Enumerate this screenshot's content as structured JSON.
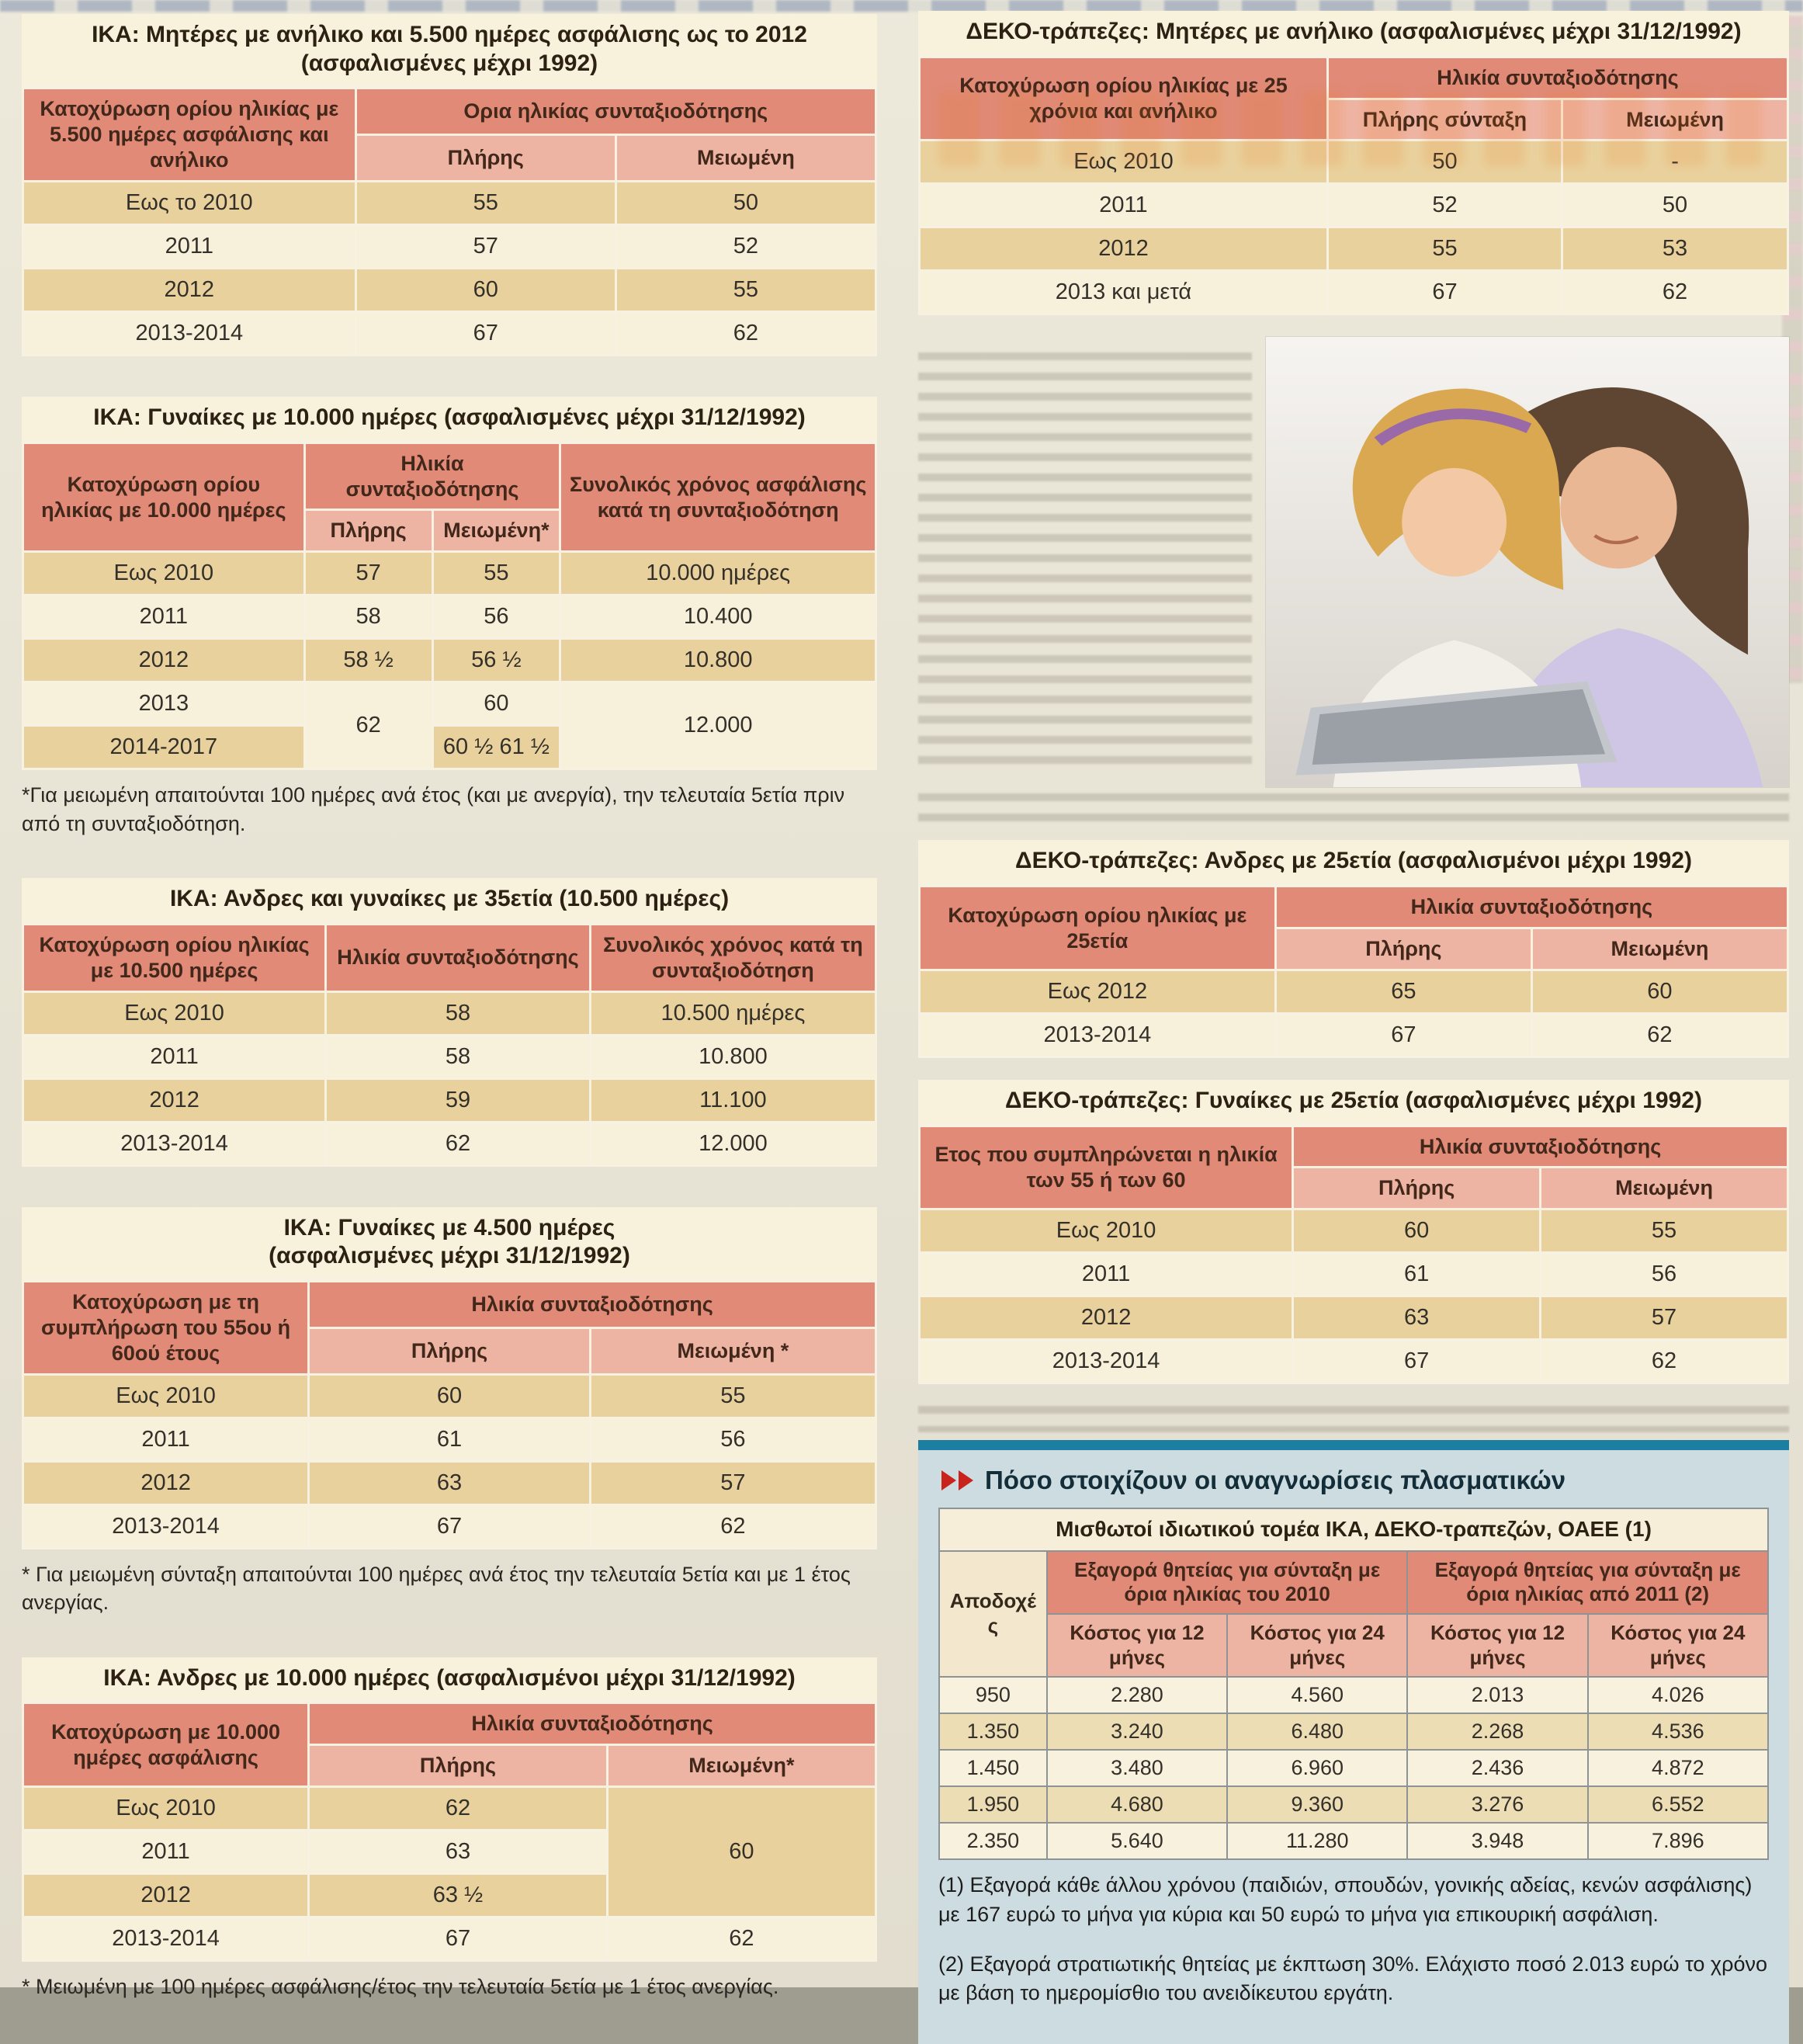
{
  "page": {
    "colors": {
      "background": "#e7e3d4",
      "header_main": "#e08a77",
      "header_sub": "#eeb4a3",
      "row_dark": "#e9d19d",
      "row_light": "#f7f0da",
      "title_bg": "#f8f1dc",
      "panel_bg": "#cddce0",
      "panel_bar_teal": "#1c7fa1",
      "chevron_red": "#c9241c"
    }
  },
  "tables": [
    {
      "id": "ika-mothers",
      "title_lines": [
        "ΙΚΑ: Μητέρες με ανήλικο και 5.500 ημέρες ασφάλισης ως το 2012",
        "(ασφαλισμένες μέχρι 1992)"
      ],
      "col_widths": [
        "39%",
        "30.5%",
        "30.5%"
      ],
      "header": [
        [
          {
            "text": "Κατοχύρωση ορίου ηλικίας με 5.500 ημέρες ασφάλισης και ανήλικο",
            "rowspan": 2,
            "type": "main"
          },
          {
            "text": "Ορια ηλικίας συνταξιοδότησης",
            "colspan": 2,
            "type": "main"
          }
        ],
        [
          {
            "text": "Πλήρης",
            "type": "sub"
          },
          {
            "text": "Μειωμένη",
            "type": "sub"
          }
        ]
      ],
      "rows": [
        [
          "Εως το 2010",
          "55",
          "50"
        ],
        [
          "2011",
          "57",
          "52"
        ],
        [
          "2012",
          "60",
          "55"
        ],
        [
          "2013-2014",
          "67",
          "62"
        ]
      ]
    },
    {
      "id": "ika-women-10000",
      "title_lines": [
        "ΙΚΑ: Γυναίκες με 10.000 ημέρες (ασφαλισμένες μέχρι 31/12/1992)"
      ],
      "col_widths": [
        "33%",
        "15%",
        "15%",
        "37%"
      ],
      "header": [
        [
          {
            "text": "Κατοχύρωση ορίου ηλικίας με 10.000 ημέρες",
            "rowspan": 2,
            "type": "main"
          },
          {
            "text": "Ηλικία συνταξιοδότησης",
            "colspan": 2,
            "type": "main"
          },
          {
            "text": "Συνολικός χρόνος ασφάλισης κατά τη συνταξιοδότηση",
            "rowspan": 2,
            "type": "main"
          }
        ],
        [
          {
            "text": "Πλήρης",
            "type": "sub"
          },
          {
            "text": "Μειωμένη*",
            "type": "sub"
          }
        ]
      ],
      "rows": [
        [
          "Εως 2010",
          "57",
          "55",
          "10.000 ημέρες"
        ],
        [
          "2011",
          "58",
          "56",
          "10.400"
        ],
        [
          "2012",
          "58 ½",
          "56 ½",
          "10.800"
        ],
        [
          "2013",
          {
            "text": "62",
            "rowspan": 2
          },
          "60",
          {
            "text": "12.000",
            "rowspan": 2
          }
        ],
        [
          "2014-2017",
          "60 ½ 61 ½"
        ]
      ],
      "footnote": "*Για μειωμένη απαιτούνται 100 ημέρες ανά έτος (και με ανεργία), την τελευταία 5ετία πριν από τη συνταξιοδότηση."
    },
    {
      "id": "ika-35",
      "title_lines": [
        "ΙΚΑ: Ανδρες και γυναίκες με 35ετία (10.500 ημέρες)"
      ],
      "col_widths": [
        "35.5%",
        "31%",
        "33.5%"
      ],
      "header": [
        [
          {
            "text": "Κατοχύρωση ορίου ηλικίας με 10.500 ημέρες",
            "type": "main"
          },
          {
            "text": "Ηλικία συνταξιοδότησης",
            "type": "main"
          },
          {
            "text": "Συνολικός χρόνος κατά τη συνταξιοδότηση",
            "type": "main"
          }
        ]
      ],
      "rows": [
        [
          "Εως 2010",
          "58",
          "10.500 ημέρες"
        ],
        [
          "2011",
          "58",
          "10.800"
        ],
        [
          "2012",
          "59",
          "11.100"
        ],
        [
          "2013-2014",
          "62",
          "12.000"
        ]
      ]
    },
    {
      "id": "ika-women-4500",
      "title_lines": [
        "ΙΚΑ: Γυναίκες με 4.500 ημέρες",
        "(ασφαλισμένες μέχρι 31/12/1992)"
      ],
      "col_widths": [
        "33.5%",
        "33%",
        "33.5%"
      ],
      "header": [
        [
          {
            "text": "Κατοχύρωση με τη συμπλήρωση του 55ου ή 60ού έτους",
            "rowspan": 2,
            "type": "main"
          },
          {
            "text": "Ηλικία συνταξιοδότησης",
            "colspan": 2,
            "type": "main"
          }
        ],
        [
          {
            "text": "Πλήρης",
            "type": "sub"
          },
          {
            "text": "Μειωμένη *",
            "type": "sub"
          }
        ]
      ],
      "rows": [
        [
          "Εως 2010",
          "60",
          "55"
        ],
        [
          "2011",
          "61",
          "56"
        ],
        [
          "2012",
          "63",
          "57"
        ],
        [
          "2013-2014",
          "67",
          "62"
        ]
      ],
      "footnote": "* Για μειωμένη σύνταξη απαιτούνται 100 ημέρες ανά έτος την τελευταία 5ετία και με 1 έτος ανεργίας."
    },
    {
      "id": "ika-men-10000",
      "title_lines": [
        "ΙΚΑ: Ανδρες με 10.000 ημέρες (ασφαλισμένοι μέχρι 31/12/1992)"
      ],
      "col_widths": [
        "33.5%",
        "35%",
        "31.5%"
      ],
      "header": [
        [
          {
            "text": "Κατοχύρωση με 10.000 ημέρες ασφάλισης",
            "rowspan": 2,
            "type": "main"
          },
          {
            "text": "Ηλικία συνταξιοδότησης",
            "colspan": 2,
            "type": "main"
          }
        ],
        [
          {
            "text": "Πλήρης",
            "type": "sub"
          },
          {
            "text": "Μειωμένη*",
            "type": "sub"
          }
        ]
      ],
      "rows": [
        [
          "Εως 2010",
          "62",
          {
            "text": "60",
            "rowspan": 3
          }
        ],
        [
          "2011",
          "63"
        ],
        [
          "2012",
          "63 ½"
        ],
        [
          "2013-2014",
          "67",
          "62"
        ]
      ],
      "footnote": "* Μειωμένη με 100 ημέρες ασφάλισης/έτος την τελευταία 5ετία με 1 έτος ανεργίας."
    },
    {
      "id": "deko-mothers",
      "title_lines": [
        "ΔΕΚΟ-τράπεζες: Μητέρες με ανήλικο (ασφαλισμένες μέχρι 31/12/1992)"
      ],
      "col_widths": [
        "47%",
        "27%",
        "26%"
      ],
      "header": [
        [
          {
            "text": "Κατοχύρωση ορίου ηλικίας με 25 χρόνια και ανήλικο",
            "rowspan": 2,
            "type": "main"
          },
          {
            "text": "Ηλικία συνταξιοδότησης",
            "colspan": 2,
            "type": "main"
          }
        ],
        [
          {
            "text": "Πλήρης σύνταξη",
            "type": "sub"
          },
          {
            "text": "Μειωμένη",
            "type": "sub"
          }
        ]
      ],
      "rows": [
        [
          "Εως 2010",
          "50",
          "-"
        ],
        [
          "2011",
          "52",
          "50"
        ],
        [
          "2012",
          "55",
          "53"
        ],
        [
          "2013 και μετά",
          "67",
          "62"
        ]
      ]
    },
    {
      "id": "deko-men",
      "title_lines": [
        "ΔΕΚΟ-τράπεζες: Ανδρες με 25ετία (ασφαλισμένοι μέχρι 1992)"
      ],
      "col_widths": [
        "41%",
        "29.5%",
        "29.5%"
      ],
      "header": [
        [
          {
            "text": "Κατοχύρωση ορίου ηλικίας με 25ετία",
            "rowspan": 2,
            "type": "main"
          },
          {
            "text": "Ηλικία συνταξιοδότησης",
            "colspan": 2,
            "type": "main"
          }
        ],
        [
          {
            "text": "Πλήρης",
            "type": "sub"
          },
          {
            "text": "Μειωμένη",
            "type": "sub"
          }
        ]
      ],
      "rows": [
        [
          "Εως 2012",
          "65",
          "60"
        ],
        [
          "2013-2014",
          "67",
          "62"
        ]
      ]
    },
    {
      "id": "deko-women",
      "title_lines": [
        "ΔΕΚΟ-τράπεζες: Γυναίκες με 25ετία (ασφαλισμένες μέχρι 1992)"
      ],
      "col_widths": [
        "43%",
        "28.5%",
        "28.5%"
      ],
      "header": [
        [
          {
            "text": "Ετος που συμπληρώνεται η ηλικία των 55 ή των 60",
            "rowspan": 2,
            "type": "main"
          },
          {
            "text": "Ηλικία συνταξιοδότησης",
            "colspan": 2,
            "type": "main"
          }
        ],
        [
          {
            "text": "Πλήρης",
            "type": "sub"
          },
          {
            "text": "Μειωμένη",
            "type": "sub"
          }
        ]
      ],
      "rows": [
        [
          "Εως 2010",
          "60",
          "55"
        ],
        [
          "2011",
          "61",
          "56"
        ],
        [
          "2012",
          "63",
          "57"
        ],
        [
          "2013-2014",
          "67",
          "62"
        ]
      ]
    }
  ],
  "cost_section": {
    "heading": "Πόσο στοιχίζουν οι αναγνωρίσεις πλασματικών",
    "notes": [
      "(1) Εξαγορά κάθε άλλου χρόνου (παιδιών, σπουδών, γονικής αδείας, κενών ασφάλισης) με 167 ευρώ το μήνα για κύρια και 50 ευρώ το μήνα για επικουρική ασφάλιση.",
      "(2) Εξαγορά στρατιωτικής θητείας με έκπτωση 30%. Ελάχιστο ποσό 2.013 ευρώ το χρόνο με βάση το ημερομίσθιο του ανειδίκευτου εργάτη."
    ],
    "table": {
      "id": "cost",
      "title_lines": [
        "Μισθωτοί ιδιωτικού τομέα ΙΚΑ, ΔΕΚΟ-τραπεζών, ΟΑΕΕ (1)"
      ],
      "col_widths": [
        "13%",
        "21.75%",
        "21.75%",
        "21.75%",
        "21.75%"
      ],
      "stripe_offset": 1,
      "header": [
        [
          {
            "text": "Αποδοχές",
            "rowspan": 2,
            "type": "plain"
          },
          {
            "text": "Εξαγορά θητείας για σύνταξη με όρια ηλικίας του 2010",
            "colspan": 2,
            "type": "main"
          },
          {
            "text": "Εξαγορά θητείας για σύνταξη με όρια ηλικίας από 2011 (2)",
            "colspan": 2,
            "type": "main"
          }
        ],
        [
          {
            "text": "Κόστος για 12 μήνες",
            "type": "sub"
          },
          {
            "text": "Κόστος για 24 μήνες",
            "type": "sub"
          },
          {
            "text": "Κόστος για 12 μήνες",
            "type": "sub"
          },
          {
            "text": "Κόστος για 24 μήνες",
            "type": "sub"
          }
        ]
      ],
      "rows": [
        [
          "950",
          "2.280",
          "4.560",
          "2.013",
          "4.026"
        ],
        [
          "1.350",
          "3.240",
          "6.480",
          "2.268",
          "4.536"
        ],
        [
          "1.450",
          "3.480",
          "6.960",
          "2.436",
          "4.872"
        ],
        [
          "1.950",
          "4.680",
          "9.360",
          "3.276",
          "6.552"
        ],
        [
          "2.350",
          "5.640",
          "11.280",
          "3.948",
          "7.896"
        ]
      ]
    }
  }
}
